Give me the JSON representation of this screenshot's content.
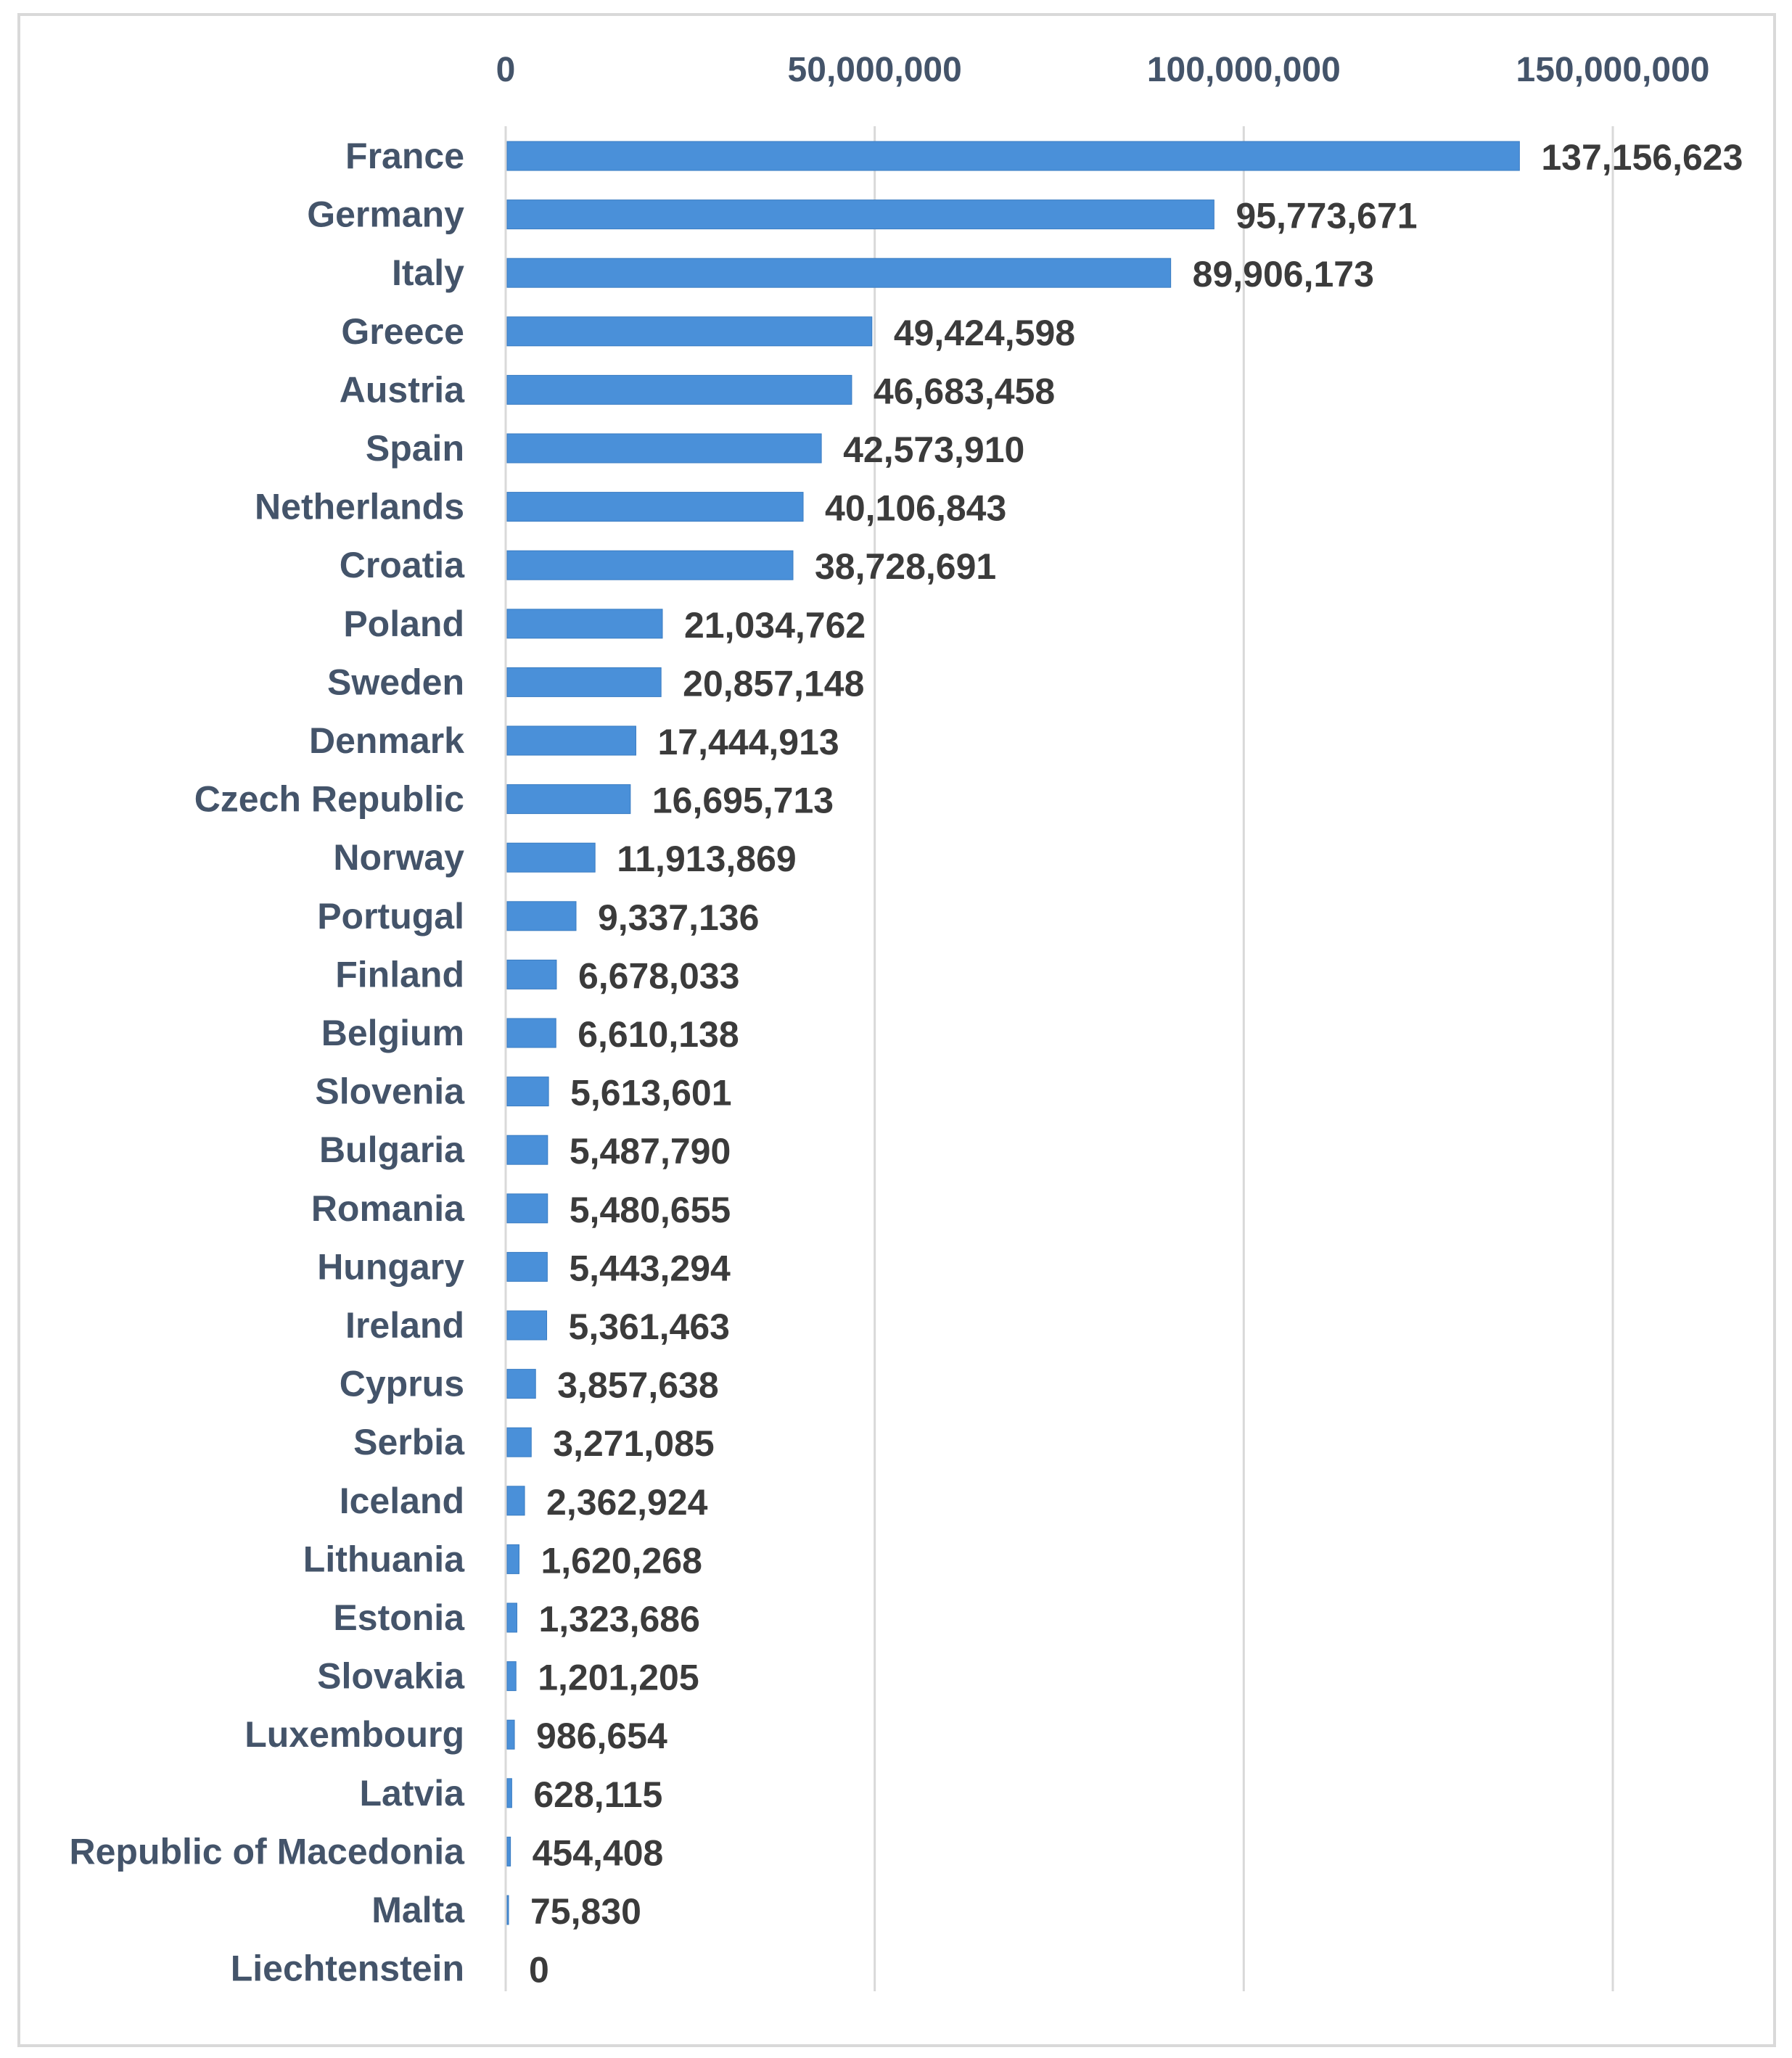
{
  "chart_data": {
    "type": "bar",
    "orientation": "horizontal",
    "title": "",
    "xlabel": "",
    "ylabel": "",
    "xaxis_position": "top",
    "xlim": [
      0,
      150000000
    ],
    "ticks": [
      {
        "value": 0,
        "label": "0"
      },
      {
        "value": 50000000,
        "label": "50,000,000"
      },
      {
        "value": 100000000,
        "label": "100,000,000"
      },
      {
        "value": 150000000,
        "label": "150,000,000"
      }
    ],
    "grid": true,
    "legend": "none",
    "bar_color": "#4a90d9",
    "categories": [
      "France",
      "Germany",
      "Italy",
      "Greece",
      "Austria",
      "Spain",
      "Netherlands",
      "Croatia",
      "Poland",
      "Sweden",
      "Denmark",
      "Czech Republic",
      "Norway",
      "Portugal",
      "Finland",
      "Belgium",
      "Slovenia",
      "Bulgaria",
      "Romania",
      "Hungary",
      "Ireland",
      "Cyprus",
      "Serbia",
      "Iceland",
      "Lithuania",
      "Estonia",
      "Slovakia",
      "Luxembourg",
      "Latvia",
      "Republic of Macedonia",
      "Malta",
      "Liechtenstein"
    ],
    "values": [
      137156623,
      95773671,
      89906173,
      49424598,
      46683458,
      42573910,
      40106843,
      38728691,
      21034762,
      20857148,
      17444913,
      16695713,
      11913869,
      9337136,
      6678033,
      6610138,
      5613601,
      5487790,
      5480655,
      5443294,
      5361463,
      3857638,
      3271085,
      2362924,
      1620268,
      1323686,
      1201205,
      986654,
      628115,
      454408,
      75830,
      0
    ],
    "value_labels": [
      "137,156,623",
      "95,773,671",
      "89,906,173",
      "49,424,598",
      "46,683,458",
      "42,573,910",
      "40,106,843",
      "38,728,691",
      "21,034,762",
      "20,857,148",
      "17,444,913",
      "16,695,713",
      "11,913,869",
      "9,337,136",
      "6,678,033",
      "6,610,138",
      "5,613,601",
      "5,487,790",
      "5,480,655",
      "5,443,294",
      "5,361,463",
      "3,857,638",
      "3,271,085",
      "2,362,924",
      "1,620,268",
      "1,323,686",
      "1,201,205",
      "986,654",
      "628,115",
      "454,408",
      "75,830",
      "0"
    ]
  }
}
